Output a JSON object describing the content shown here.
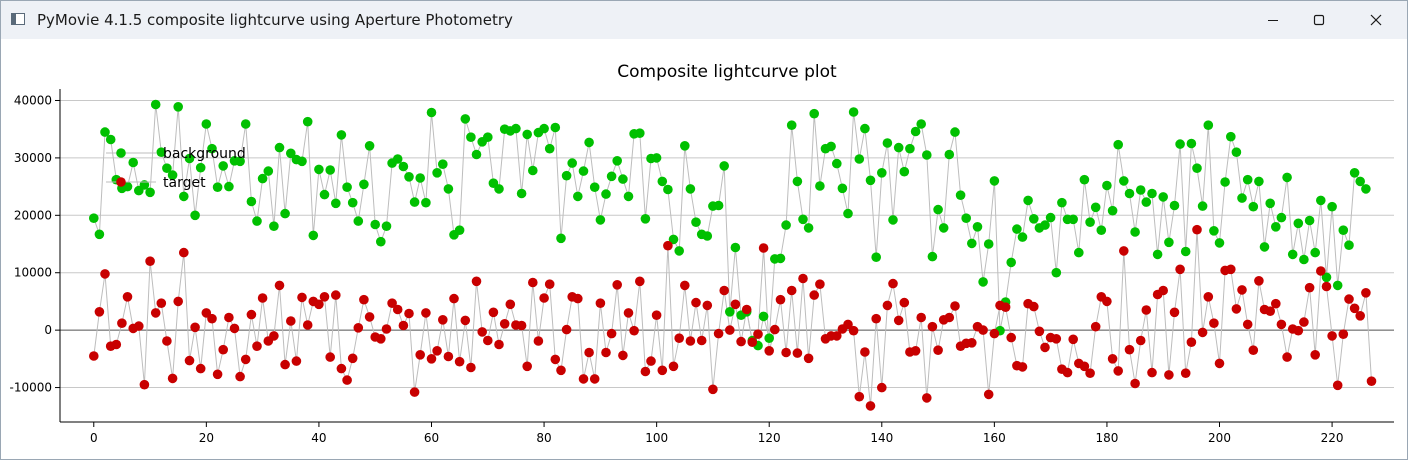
{
  "window": {
    "title": "PyMovie 4.1.5 composite lightcurve using Aperture Photometry",
    "minimize_icon": "minimize-icon",
    "maximize_icon": "maximize-icon",
    "close_icon": "close-icon"
  },
  "chart_data": {
    "type": "scatter",
    "title": "Composite lightcurve plot",
    "xlabel": "",
    "ylabel": "",
    "xlim": [
      -6,
      231
    ],
    "ylim": [
      -16000,
      42000
    ],
    "x_ticks": [
      0,
      20,
      40,
      60,
      80,
      100,
      120,
      140,
      160,
      180,
      200,
      220
    ],
    "y_ticks": [
      -10000,
      0,
      10000,
      20000,
      30000,
      40000
    ],
    "grid": "horizontal",
    "legend": "top-left",
    "series": [
      {
        "name": "background",
        "color": "#00c000",
        "values": [
          19500,
          16700,
          34500,
          33200,
          26200,
          24700,
          25000,
          29200,
          24300,
          25300,
          24000,
          39300,
          31000,
          28200,
          27000,
          38900,
          23300,
          29900,
          20000,
          28300,
          35900,
          31600,
          24900,
          28600,
          25000,
          29500,
          29400,
          35900,
          22400,
          19000,
          26400,
          27700,
          18100,
          31800,
          20300,
          30800,
          29700,
          29400,
          36300,
          16500,
          28000,
          23600,
          27900,
          22100,
          34000,
          24900,
          22200,
          19000,
          25400,
          32100,
          18400,
          15400,
          18100,
          29100,
          29800,
          28500,
          26700,
          22300,
          26500,
          22200,
          37900,
          27400,
          28900,
          24600,
          16600,
          17400,
          36800,
          33600,
          30600,
          32800,
          33600,
          25600,
          24600,
          35000,
          34700,
          35100,
          23800,
          34100,
          27800,
          34400,
          35100,
          31600,
          35300,
          16000,
          26900,
          29100,
          23300,
          27700,
          32700,
          24900,
          19200,
          23700,
          26800,
          29500,
          26300,
          23300,
          34200,
          34300,
          19400,
          29900,
          30000,
          25900,
          24500,
          15800,
          13800,
          32100,
          24600,
          18800,
          16700,
          16400,
          21600,
          21700,
          28600,
          3200,
          14400,
          2600,
          3200,
          -1800,
          -2700,
          2400,
          -1400,
          12400,
          12500,
          18300,
          35700,
          25900,
          19300,
          17800,
          37700,
          25100,
          31600,
          32000,
          29000,
          24700,
          20300,
          38000,
          29800,
          35100,
          26100,
          12700,
          27400,
          32600,
          19200,
          31800,
          27600,
          31600,
          34600,
          35900,
          30500,
          12800,
          21000,
          17800,
          30600,
          34500,
          23500,
          19500,
          15100,
          18000,
          8400,
          15000,
          26000,
          -100,
          4900,
          11800,
          17600,
          16200,
          22600,
          19400,
          17800,
          18300,
          19600,
          10000,
          22200,
          19300,
          19300,
          13500,
          26200,
          18800,
          21400,
          17400,
          25200,
          20800,
          32300,
          26000,
          23800,
          17100,
          24400,
          22300,
          23800,
          13200,
          23200,
          15300,
          21700,
          32400,
          13700,
          32500,
          28200,
          21600,
          35700,
          17300,
          15200,
          25800,
          33700,
          31000,
          23000,
          26200,
          21500,
          25900,
          14500,
          22100,
          18000,
          19600,
          26600,
          13200,
          18600,
          12300,
          19100,
          13500,
          22600,
          9200,
          21500,
          7800,
          17400,
          14800,
          27400,
          25900,
          24600
        ]
      },
      {
        "name": "target",
        "color": "#c80000",
        "values": [
          -4500,
          3200,
          9800,
          -2800,
          -2500,
          1200,
          5800,
          300,
          700,
          -9500,
          12000,
          3000,
          4700,
          -1900,
          -8400,
          5000,
          13500,
          -5300,
          500,
          -6700,
          3000,
          2000,
          -7700,
          -3400,
          2200,
          300,
          -8100,
          -5100,
          2700,
          -2800,
          5600,
          -1900,
          -1000,
          7800,
          -6000,
          1600,
          -5400,
          5700,
          900,
          5000,
          4500,
          5800,
          -4700,
          6100,
          -6700,
          -8700,
          -4900,
          400,
          5300,
          2300,
          -1200,
          -1500,
          200,
          4700,
          3600,
          800,
          2900,
          -10800,
          -4300,
          3000,
          -5000,
          -3600,
          1800,
          -4600,
          5500,
          -5500,
          1700,
          -6500,
          8500,
          -300,
          -1800,
          3100,
          -2500,
          1100,
          4500,
          900,
          800,
          -6300,
          8300,
          -1900,
          5600,
          8000,
          -5100,
          -7000,
          100,
          5800,
          5500,
          -8500,
          -3900,
          -8500,
          4700,
          -3900,
          -600,
          7900,
          -4400,
          3000,
          -100,
          8500,
          -7200,
          -5400,
          2600,
          -7000,
          14700,
          -6300,
          -1400,
          7800,
          -1900,
          4800,
          -1800,
          4300,
          -10300,
          -600,
          6900,
          0,
          4500,
          -2000,
          3600,
          -2100,
          -700,
          14300,
          -3600,
          100,
          5300,
          -3900,
          6900,
          -4000,
          9000,
          -4900,
          6100,
          8000,
          -1500,
          -1000,
          -1000,
          200,
          1000,
          -100,
          -11600,
          -3800,
          -13200,
          2000,
          -10000,
          4300,
          8100,
          1700,
          4800,
          -3800,
          -3600,
          2200,
          -11800,
          600,
          -3500,
          1800,
          2200,
          4200,
          -2800,
          -2300,
          -2200,
          600,
          0,
          -11200,
          -600,
          4300,
          4000,
          -1300,
          -6200,
          -6400,
          4600,
          4100,
          -200,
          -3000,
          -1300,
          -1500,
          -6800,
          -7400,
          -1600,
          -5800,
          -6300,
          -7500,
          600,
          5800,
          5000,
          -5000,
          -7100,
          13800,
          -3400,
          -9300,
          -1800,
          3500,
          -7400,
          6200,
          6900,
          -7800,
          3100,
          10600,
          -7500,
          -2100,
          17500,
          -400,
          5800,
          1200,
          -5800,
          10400,
          10600,
          3700,
          7000,
          1000,
          -3500,
          8600,
          3600,
          3300,
          4600,
          1000,
          -4700,
          200,
          -100,
          1400,
          7400,
          -4300,
          10300,
          7600,
          -1000,
          -9600,
          -700,
          5400,
          3800,
          2500,
          6500,
          -8900
        ]
      }
    ]
  }
}
